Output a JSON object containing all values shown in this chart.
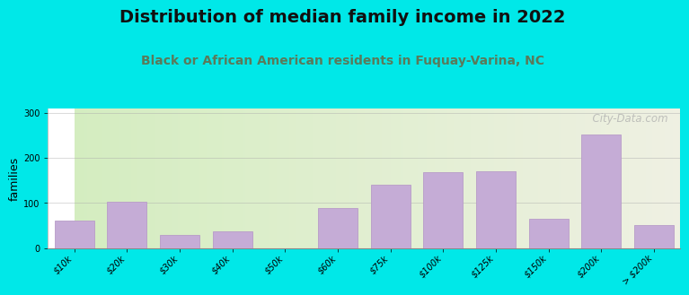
{
  "title": "Distribution of median family income in 2022",
  "subtitle": "Black or African American residents in Fuquay-Varina, NC",
  "categories": [
    "$10k",
    "$20k",
    "$30k",
    "$40k",
    "$50k",
    "$60k",
    "$75k",
    "$100k",
    "$125k",
    "$150k",
    "$200k",
    "> $200k"
  ],
  "values": [
    62,
    102,
    30,
    38,
    0,
    88,
    140,
    168,
    170,
    65,
    252,
    52
  ],
  "bar_color": "#c5acd6",
  "bar_edge_color": "#b89cc8",
  "background_outer": "#00e8e8",
  "background_inner_left": "#d4edc0",
  "background_inner_right": "#f0f0e4",
  "title_color": "#111111",
  "subtitle_color": "#5a7a5a",
  "ylabel": "families",
  "ylim": [
    0,
    310
  ],
  "yticks": [
    0,
    100,
    200,
    300
  ],
  "watermark": "  City-Data.com",
  "title_fontsize": 14,
  "subtitle_fontsize": 10,
  "ylabel_fontsize": 9,
  "tick_fontsize": 7,
  "bar_width": 0.75
}
